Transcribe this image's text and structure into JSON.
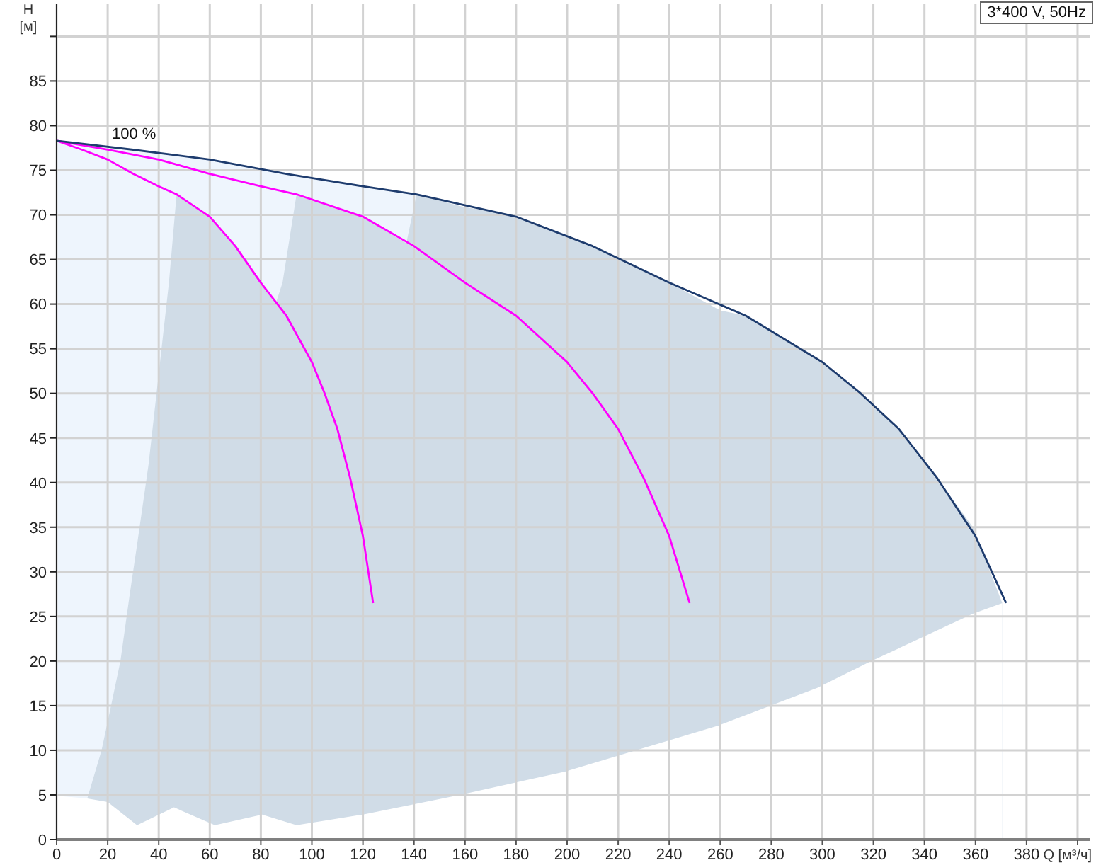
{
  "chart_data": {
    "type": "line",
    "title": "3*400 V, 50Hz",
    "xlabel": "Q [м³/ч]",
    "ylabel": "H [м]",
    "xlim": [
      0,
      405
    ],
    "ylim": [
      0,
      93.6
    ],
    "xticks": [
      0,
      20,
      40,
      60,
      80,
      100,
      120,
      140,
      160,
      180,
      200,
      220,
      240,
      260,
      280,
      300,
      320,
      340,
      360,
      380,
      {
        "value": 400,
        "label": null
      }
    ],
    "yticks": [
      0,
      5,
      10,
      15,
      20,
      25,
      30,
      35,
      40,
      45,
      50,
      55,
      60,
      65,
      70,
      75,
      80,
      85,
      {
        "value": 90,
        "label": null
      }
    ],
    "grid": true,
    "annotations": [
      "100 %"
    ],
    "series": [
      {
        "type": "area",
        "color": "#eef5fd",
        "x": [
          0,
          12,
          20,
          31.5,
          46,
          62,
          80.5,
          94,
          120,
          141
        ],
        "values": [
          78.3,
          77.8,
          77.5,
          77.1,
          76.7,
          76.2,
          75.2,
          74.4,
          73.2,
          72.3
        ]
      },
      {
        "type": "area",
        "color": "#d0dce7",
        "x": [
          12,
          17.6,
          20,
          25,
          28.7,
          31.5,
          36,
          44,
          47,
          62,
          70,
          80.5,
          86,
          88.5,
          94,
          120,
          137,
          141,
          158,
          180,
          199,
          210,
          240,
          260,
          270,
          300,
          315,
          330,
          345,
          359,
          370.5
        ],
        "values": [
          4.6,
          10,
          13.2,
          20,
          27.6,
          33,
          42,
          62.4,
          72.3,
          69.3,
          66.5,
          62.2,
          60.2,
          62.4,
          72.3,
          69.8,
          66.8,
          72.3,
          71,
          69.8,
          67.7,
          66.5,
          62.4,
          59.3,
          58.7,
          53.5,
          50,
          46,
          40.5,
          35,
          26.5
        ]
      },
      {
        "type": "area",
        "color": "#ffffff",
        "x": [
          0,
          12,
          20,
          31.5,
          46,
          62,
          80.5,
          94,
          120,
          158,
          199,
          259.5,
          298,
          318.5,
          359,
          370.5
        ],
        "values": [
          4.9,
          4.6,
          4.2,
          1.6,
          3.6,
          1.6,
          2.8,
          1.6,
          2.8,
          5,
          7.6,
          12.8,
          17,
          19.9,
          25.3,
          26.5
        ]
      },
      {
        "color": "#ff00ff",
        "x": [
          0,
          10,
          20,
          30,
          40,
          47,
          60,
          70,
          80,
          90,
          100,
          105,
          110,
          115,
          120,
          124
        ],
        "values": [
          78.3,
          77.3,
          76.2,
          74.6,
          73.2,
          72.3,
          69.8,
          66.5,
          62.4,
          58.7,
          53.5,
          50,
          46,
          40.5,
          34,
          26.5
        ]
      },
      {
        "color": "#ff00ff",
        "x": [
          0,
          20,
          40,
          60,
          80,
          94,
          120,
          140,
          160,
          180,
          200,
          210,
          220,
          230,
          240,
          248
        ],
        "values": [
          78.3,
          77.3,
          76.2,
          74.6,
          73.2,
          72.3,
          69.8,
          66.5,
          62.4,
          58.7,
          53.5,
          50,
          46,
          40.5,
          34,
          26.5
        ]
      },
      {
        "color": "#1e3c6e",
        "x": [
          0,
          30,
          60,
          90,
          120,
          141,
          180,
          210,
          240,
          270,
          300,
          315,
          330,
          345,
          360,
          372
        ],
        "values": [
          78.3,
          77.3,
          76.2,
          74.6,
          73.2,
          72.3,
          69.8,
          66.5,
          62.4,
          58.7,
          53.5,
          50,
          46,
          40.5,
          34,
          26.5
        ]
      }
    ]
  }
}
